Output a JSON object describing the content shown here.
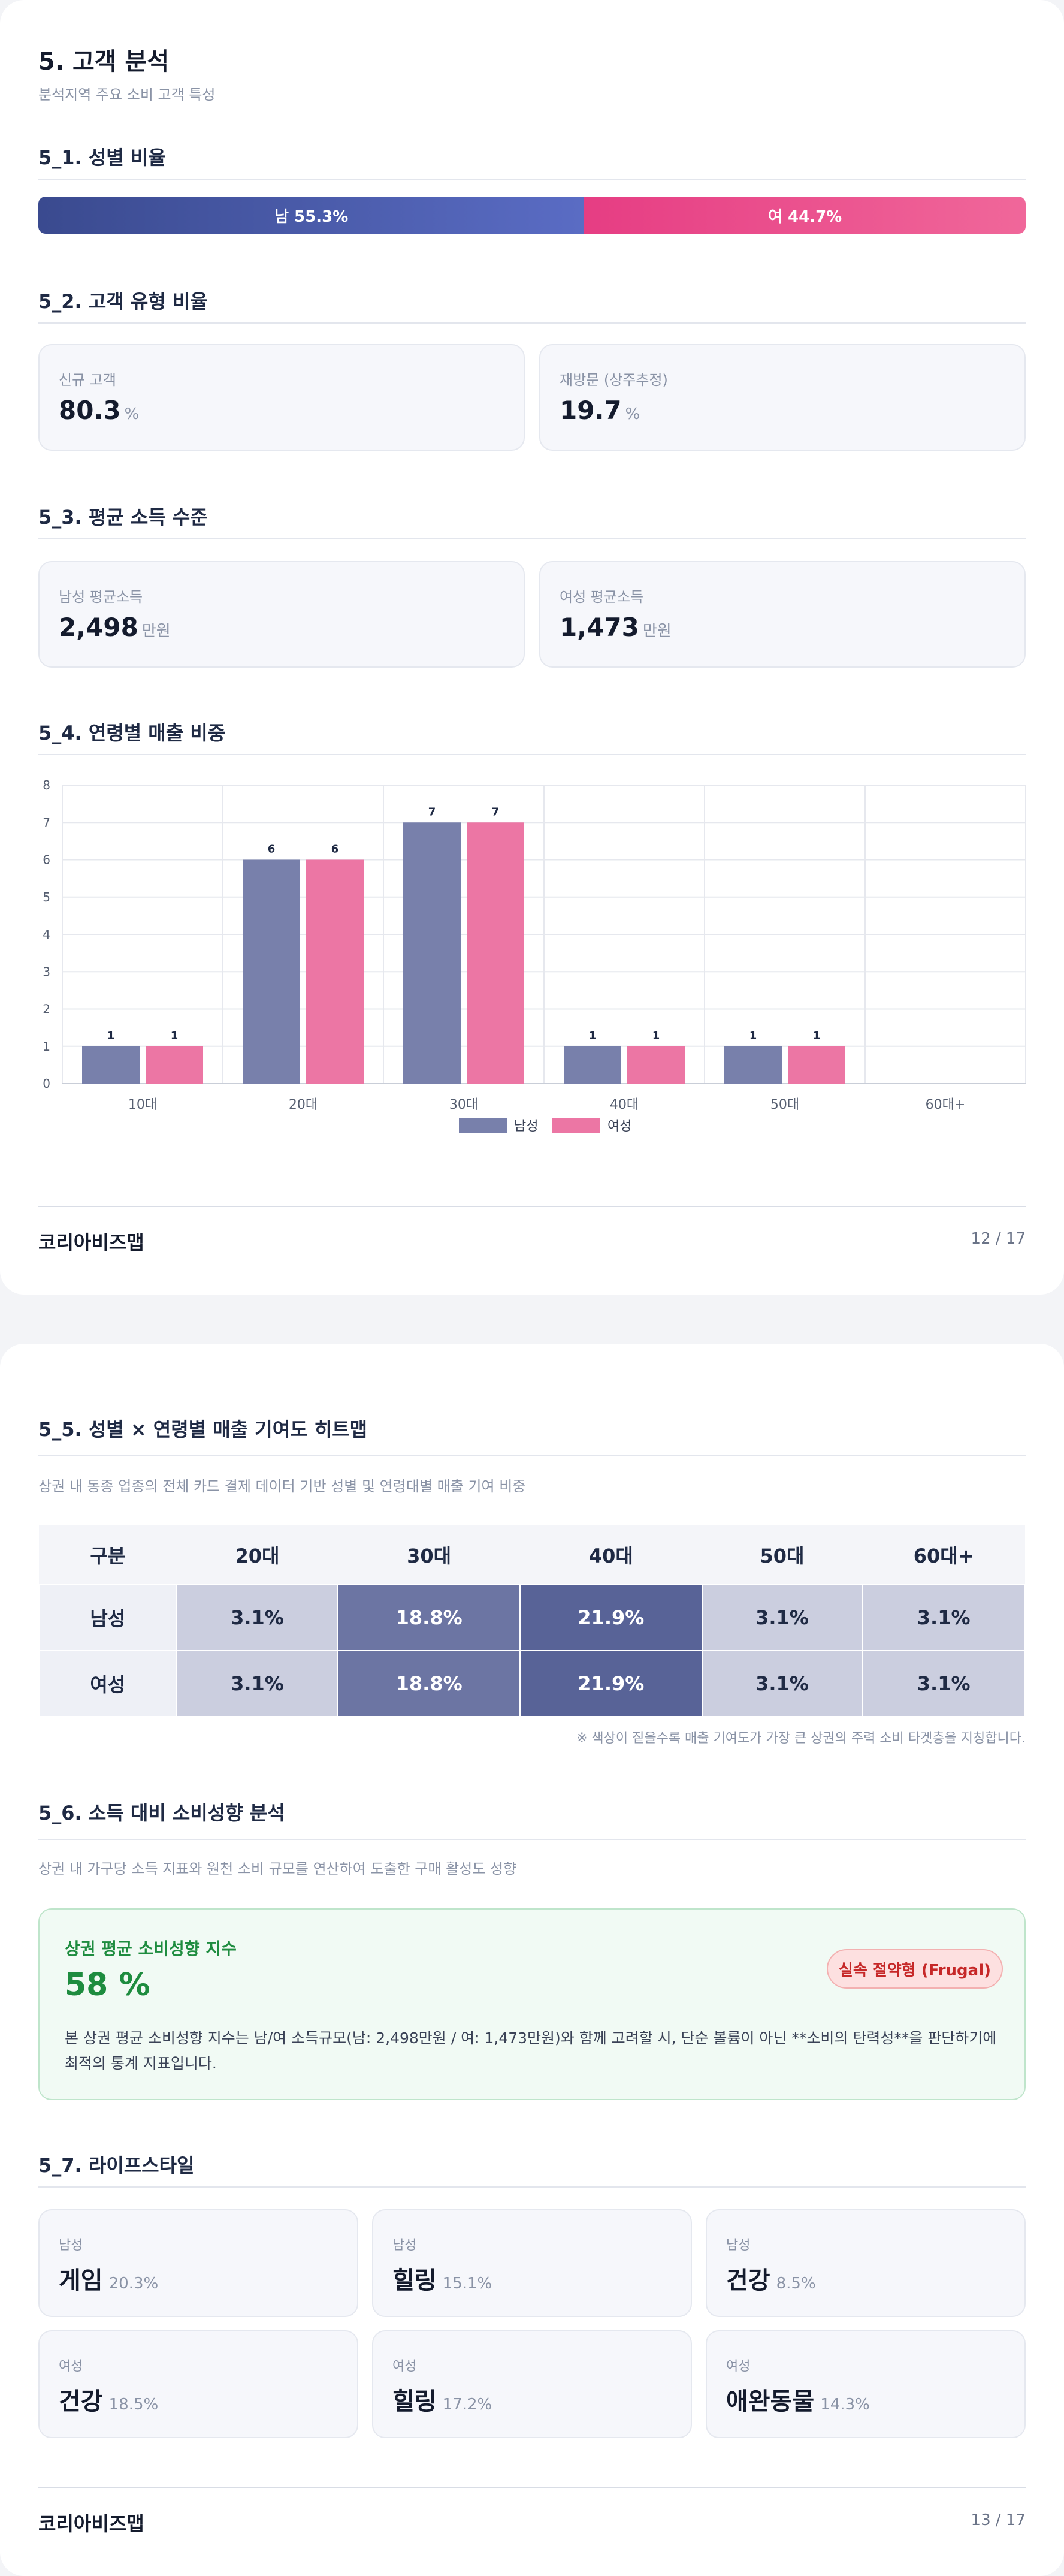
{
  "page1": {
    "title": "5. 고객 분석",
    "subtitle": "분석지역 주요 소비 고객 특성",
    "gender": {
      "title": "5_1. 성별 비율",
      "male_label": "남 55.3%",
      "female_label": "여 44.7%",
      "male_ratio": 55.3,
      "female_ratio": 44.7,
      "male_color": "#4457a8",
      "female_color": "#eb4d8b"
    },
    "customer_type": {
      "title": "5_2. 고객 유형 비율",
      "new_label": "신규 고객",
      "new_value": "80.3",
      "new_unit": "%",
      "return_label": "재방문 (상주추정)",
      "return_value": "19.7",
      "return_unit": "%"
    },
    "income": {
      "title": "5_3. 평균 소득 수준",
      "male_label": "남성 평균소득",
      "male_value": "2,498",
      "male_unit": "만원",
      "female_label": "여성 평균소득",
      "female_value": "1,473",
      "female_unit": "만원"
    },
    "age_sales": {
      "title": "5_4. 연령별 매출 비중"
    },
    "footer": {
      "brand": "코리아비즈맵",
      "page": "12 / 17"
    }
  },
  "chart_data": {
    "type": "bar",
    "categories": [
      "10대",
      "20대",
      "30대",
      "40대",
      "50대",
      "60대+"
    ],
    "series": [
      {
        "name": "남성",
        "values": [
          1,
          6,
          7,
          1,
          1,
          0
        ],
        "color": "#7880ab"
      },
      {
        "name": "여성",
        "values": [
          1,
          6,
          7,
          1,
          1,
          0
        ],
        "color": "#ec76a4"
      }
    ],
    "data_labels": [
      [
        "1",
        "6",
        "7",
        "1",
        "1",
        ""
      ],
      [
        "1",
        "6",
        "7",
        "1",
        "1",
        ""
      ]
    ],
    "yticks": [
      0,
      1,
      2,
      3,
      4,
      5,
      6,
      7,
      8
    ],
    "ylim": [
      0,
      8
    ],
    "grid": true,
    "legend": "bottom-center"
  },
  "page2": {
    "heatmap": {
      "title": "5_5. 성별 × 연령별 매출 기여도 히트맵",
      "desc": "상권 내 동종 업종의 전체 카드 결제 데이터 기반 성별 및 연령대별 매출 기여 비중",
      "headers": [
        "구분",
        "20대",
        "30대",
        "40대",
        "50대",
        "60대+"
      ],
      "rows": [
        {
          "label": "남성",
          "cells": [
            "3.1%",
            "18.8%",
            "21.9%",
            "3.1%",
            "3.1%"
          ],
          "values": [
            3.1,
            18.8,
            21.9,
            3.1,
            3.1
          ]
        },
        {
          "label": "여성",
          "cells": [
            "3.1%",
            "18.8%",
            "21.9%",
            "3.1%",
            "3.1%"
          ],
          "values": [
            3.1,
            18.8,
            21.9,
            3.1,
            3.1
          ]
        }
      ],
      "note": "※ 색상이 짙을수록 매출 기여도가 가장 큰 상권의 주력 소비 타겟층을 지칭합니다."
    },
    "spending": {
      "title": "5_6. 소득 대비 소비성향 분석",
      "desc": "상권 내 가구당 소득 지표와 원천 소비 규모를 연산하여 도출한 구매 활성도 성향",
      "card_title": "상권 평균 소비성향 지수",
      "value": "58 %",
      "badge": "실속 절약형 (Frugal)",
      "body": "본 상권 평균 소비성향 지수는 남/여 소득규모(남: 2,498만원 / 여: 1,473만원)와 함께 고려할 시, 단순 볼륨이 아닌 **소비의 탄력성**을 판단하기에 최적의 통계 지표입니다.",
      "accent_color": "#1e8c3f"
    },
    "lifestyle": {
      "title": "5_7. 라이프스타일",
      "items": [
        {
          "category": "남성",
          "name": "게임",
          "pct": "20.3%"
        },
        {
          "category": "남성",
          "name": "힐링",
          "pct": "15.1%"
        },
        {
          "category": "남성",
          "name": "건강",
          "pct": "8.5%"
        },
        {
          "category": "여성",
          "name": "건강",
          "pct": "18.5%"
        },
        {
          "category": "여성",
          "name": "힐링",
          "pct": "17.2%"
        },
        {
          "category": "여성",
          "name": "애완동물",
          "pct": "14.3%"
        }
      ]
    },
    "footer": {
      "brand": "코리아비즈맵",
      "page": "13 / 17"
    }
  }
}
